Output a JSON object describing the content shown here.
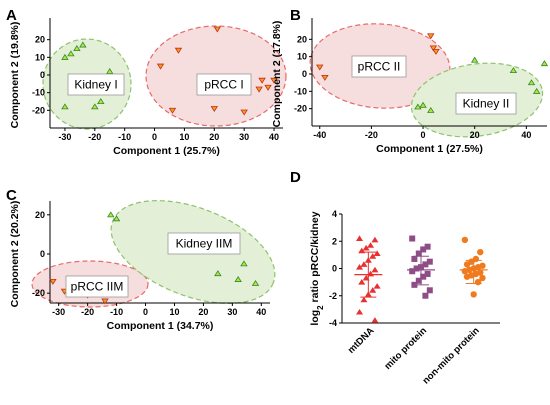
{
  "chart_data": [
    {
      "panel": "A",
      "type": "scatter",
      "xlabel": "Component 1 (25.7%)",
      "ylabel": "Component 2 (19.8%)",
      "xlim": [
        -35,
        43
      ],
      "ylim": [
        -30,
        30
      ],
      "xticks": [
        -30,
        -20,
        -10,
        0,
        10,
        20,
        30,
        40
      ],
      "yticks": [
        -20,
        -10,
        0,
        10,
        20
      ],
      "clusters": [
        {
          "label": "Kidney I",
          "fill": "#e4efd8",
          "stroke": "#8cc46a",
          "points": [
            [
              -30,
              10
            ],
            [
              -28,
              12
            ],
            [
              -24,
              17
            ],
            [
              -26,
              15
            ],
            [
              -22,
              -10
            ],
            [
              -18,
              -15
            ],
            [
              -15,
              2
            ],
            [
              -12,
              -5
            ],
            [
              -30,
              -18
            ],
            [
              -20,
              -18
            ]
          ]
        },
        {
          "label": "pRCC I",
          "fill": "#f6dede",
          "stroke": "#e86a6a",
          "points": [
            [
              21,
              26
            ],
            [
              8,
              14
            ],
            [
              2,
              5
            ],
            [
              36,
              -3
            ],
            [
              40,
              -3
            ],
            [
              38,
              -7
            ],
            [
              35,
              -8
            ],
            [
              6,
              -20
            ],
            [
              20,
              -19
            ],
            [
              30,
              -21
            ]
          ]
        }
      ]
    },
    {
      "panel": "B",
      "type": "scatter",
      "xlabel": "Component 1 (27.5%)",
      "ylabel": "Component 2 (17.8%)",
      "xlim": [
        -43,
        48
      ],
      "ylim": [
        -30,
        30
      ],
      "xticks": [
        -40,
        -20,
        0,
        20,
        40
      ],
      "yticks": [
        -20,
        -10,
        0,
        10,
        20
      ],
      "clusters": [
        {
          "label": "pRCC II",
          "fill": "#f6dede",
          "stroke": "#e86a6a",
          "points": [
            [
              -40,
              4
            ],
            [
              -38,
              -2
            ],
            [
              -25,
              8
            ],
            [
              3,
              22
            ],
            [
              4,
              15
            ],
            [
              5,
              13
            ]
          ]
        },
        {
          "label": "Kidney II",
          "fill": "#e4efd8",
          "stroke": "#8cc46a",
          "points": [
            [
              20,
              8
            ],
            [
              35,
              2
            ],
            [
              42,
              -5
            ],
            [
              44,
              -10
            ],
            [
              47,
              6
            ],
            [
              -2,
              -19
            ],
            [
              0,
              -18
            ],
            [
              3,
              -21
            ]
          ]
        }
      ]
    },
    {
      "panel": "C",
      "type": "scatter",
      "xlabel": "Component 1 (34.7%)",
      "ylabel": "Component 2 (20.2%)",
      "xlim": [
        -33,
        43
      ],
      "ylim": [
        -25,
        25
      ],
      "xticks": [
        -30,
        -20,
        -10,
        0,
        10,
        20,
        30,
        40
      ],
      "yticks": [
        -20,
        0,
        20
      ],
      "clusters": [
        {
          "label": "pRCC IIM",
          "fill": "#f6dede",
          "stroke": "#e86a6a",
          "points": [
            [
              -32,
              -14
            ],
            [
              -28,
              -19
            ],
            [
              -20,
              -21
            ],
            [
              -14,
              -24
            ],
            [
              -15,
              -13
            ]
          ]
        },
        {
          "label": "Kidney IIM",
          "fill": "#e4efd8",
          "stroke": "#8cc46a",
          "points": [
            [
              -12,
              20
            ],
            [
              -10,
              18
            ],
            [
              25,
              -10
            ],
            [
              32,
              -13
            ],
            [
              38,
              -15
            ],
            [
              34,
              -5
            ]
          ]
        }
      ]
    },
    {
      "panel": "D",
      "type": "scatter",
      "ylabel": "log2 ratio pRCC/kidney",
      "ylim": [
        -4,
        4
      ],
      "yticks": [
        -4,
        -2,
        0,
        2,
        4
      ],
      "categories": [
        "mtDNA",
        "mito protein",
        "non-mito protein"
      ],
      "series": [
        {
          "color": "#e83030",
          "marker": "triangle",
          "values": [
            2.2,
            2.1,
            1.7,
            1.5,
            1.3,
            1.1,
            0.9,
            0.6,
            0.3,
            0.1,
            -0.1,
            -0.4,
            -0.7,
            -1.0,
            -1.3,
            -1.6,
            -1.9,
            -2.3,
            -3.2,
            -3.8
          ],
          "mean": -0.45,
          "sd_upper": 1.2,
          "sd_lower": -2.1
        },
        {
          "color": "#8e4d87",
          "marker": "square",
          "values": [
            2.2,
            1.6,
            1.4,
            1.1,
            0.7,
            0.5,
            0.3,
            0.1,
            0.0,
            -0.2,
            -0.4,
            -0.6,
            -0.9,
            -1.2,
            -1.6,
            -2.0
          ],
          "mean": -0.1,
          "sd_upper": 0.9,
          "sd_lower": -1.2
        },
        {
          "color": "#f07a1e",
          "marker": "circle",
          "values": [
            2.1,
            1.2,
            0.7,
            0.5,
            0.3,
            0.2,
            0.1,
            0.0,
            -0.1,
            -0.2,
            -0.3,
            -0.4,
            -0.5,
            -0.6,
            -0.7,
            -1.0,
            -1.9
          ],
          "mean": -0.1,
          "sd_upper": 0.6,
          "sd_lower": -1.1
        }
      ]
    }
  ]
}
